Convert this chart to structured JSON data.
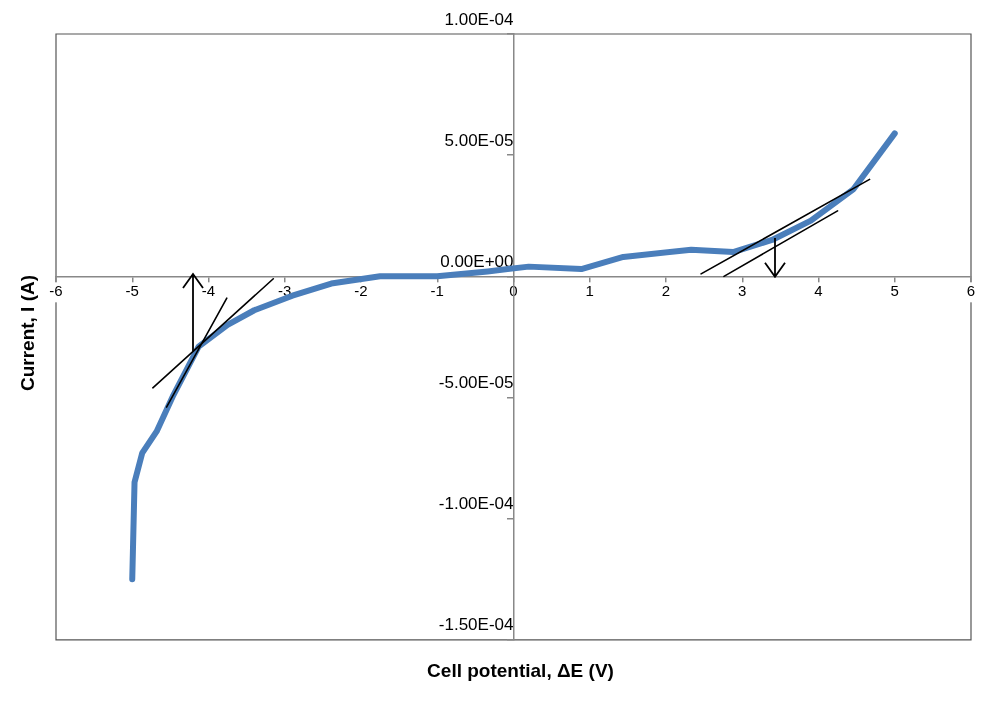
{
  "chart_data": {
    "type": "line",
    "xlabel": "Cell potential, ΔE (V)",
    "ylabel": "Current, I (A)",
    "xlim": [
      -6,
      6
    ],
    "xticks": [
      -6,
      -5,
      -4,
      -3,
      -2,
      -1,
      0,
      1,
      2,
      3,
      4,
      5,
      6
    ],
    "ylim": [
      -0.00015,
      0.0001
    ],
    "yticks": [
      {
        "value": -0.00015,
        "label": "-1.50E-04"
      },
      {
        "value": -0.0001,
        "label": "-1.00E-04"
      },
      {
        "value": -5e-05,
        "label": "-5.00E-05"
      },
      {
        "value": 0,
        "label": "0.00E+00"
      },
      {
        "value": 5e-05,
        "label": "5.00E-05"
      },
      {
        "value": 0.0001,
        "label": "1.00E-04"
      }
    ],
    "grid": false,
    "legend": false,
    "marker": "none",
    "line_style": "solid",
    "series": [
      {
        "color": "#4a7ebb",
        "x": [
          -5.0,
          -4.97,
          -4.87,
          -4.68,
          -4.46,
          -4.13,
          -3.75,
          -3.4,
          -2.9,
          -2.39,
          -1.75,
          -1.0,
          -0.34,
          0.2,
          0.89,
          1.44,
          2.33,
          2.88,
          3.39,
          3.9,
          4.46,
          5.0
        ],
        "values": [
          -0.000125,
          -8.5e-05,
          -7.3e-05,
          -6.4e-05,
          -4.9e-05,
          -2.9e-05,
          -2e-05,
          -1.4e-05,
          -8e-06,
          -3e-06,
          0,
          0,
          2e-06,
          4e-06,
          3e-06,
          8e-06,
          1.1e-05,
          1e-05,
          1.5e-05,
          2.3e-05,
          3.6e-05,
          5.9e-05
        ]
      },
      {
        "color": "#000000",
        "x": [
          -4.73,
          -3.15
        ],
        "values": [
          -4.6e-05,
          -1e-06
        ]
      },
      {
        "color": "#000000",
        "x": [
          -4.55,
          -3.76
        ],
        "values": [
          -5.4e-05,
          -9e-06
        ]
      },
      {
        "color": "#000000",
        "x": [
          2.46,
          4.67
        ],
        "values": [
          1e-06,
          4e-05
        ]
      },
      {
        "color": "#000000",
        "x": [
          2.76,
          4.25
        ],
        "values": [
          0,
          2.7e-05
        ]
      }
    ]
  }
}
